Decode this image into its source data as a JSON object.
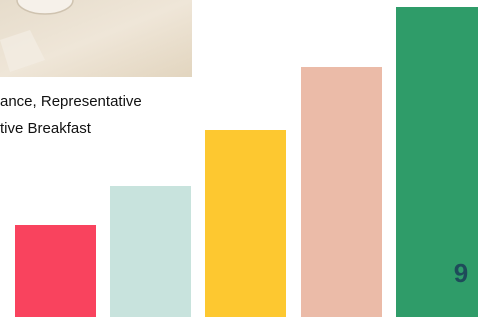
{
  "caption": {
    "lines": [
      "ance, Representative",
      "tive Breakfast"
    ]
  },
  "page_number": "9"
}
